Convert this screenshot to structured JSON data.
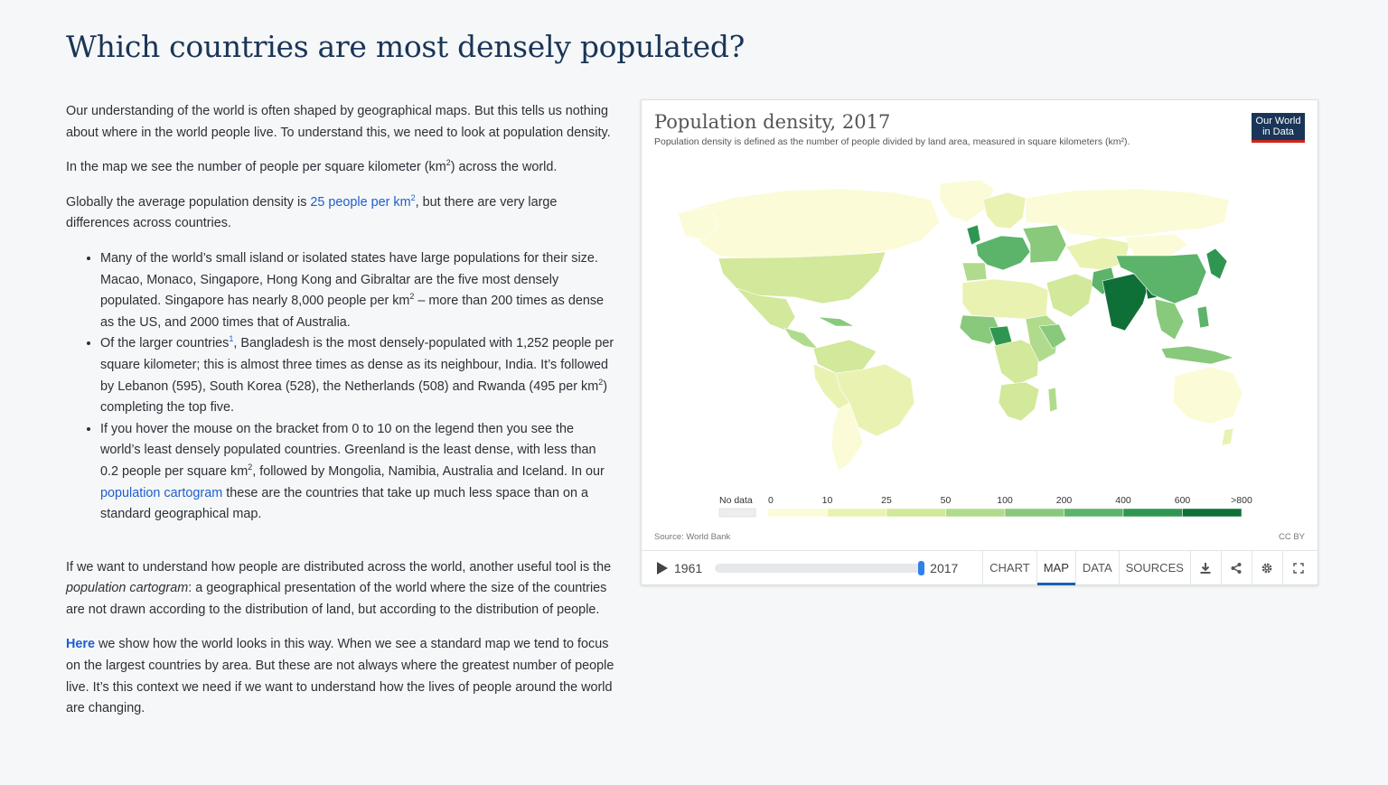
{
  "page": {
    "title": "Which countries are most densely populated?"
  },
  "article": {
    "p1": "Our understanding of the world is often shaped by geographical maps. But this tells us nothing about where in the world people live. To understand this, we need to look at population density.",
    "p2_pre": "In the map we see the number of people per square kilometer (km",
    "p2_sup": "2",
    "p2_post": ") across the world.",
    "p3_pre": "Globally the average population density is ",
    "p3_link": "25 people per km",
    "p3_link_sup": "2",
    "p3_post": ", but there are very large differences across countries.",
    "bullet1_pre": "Many of the world’s small island or isolated states have large populations for their size. Macao, Monaco, Singapore, Hong Kong and Gibraltar are the five most densely populated. Singapore has nearly 8,000 people per km",
    "bullet1_sup": "2",
    "bullet1_post": " – more than 200 times as dense as the US, and 2000 times that of Australia.",
    "bullet2_pre": "Of the larger countries",
    "bullet2_sup": "1",
    "bullet2_mid": ", Bangladesh is the most densely-populated with 1,252 people per square kilometer; this is almost three times as dense as its neighbour, India. It’s followed by Lebanon (595), South Korea (528), the Netherlands (508) and Rwanda (495 per km",
    "bullet2_sup2": "2",
    "bullet2_post": ") completing the top five.",
    "bullet3_pre": "If you hover the mouse on the bracket from 0 to 10 on the legend then you see the world’s least densely populated countries. Greenland is the least dense, with less than 0.2 people per square km",
    "bullet3_sup": "2",
    "bullet3_mid": ", followed by Mongolia, Namibia, Australia and Iceland. In our ",
    "bullet3_link": "population cartogram",
    "bullet3_post": " these are the countries that take up much less space than on a standard geographical map.",
    "p4_pre": "If we want to understand how people are distributed across the world, another useful tool is the ",
    "p4_em": "population cartogram",
    "p4_post": ": a geographical presentation of the world where the size of the countries are not drawn according to the distribution of land, but according to the distribution of people.",
    "p5_link": "Here",
    "p5_post": " we show how the world looks in this way. When we see a standard map we tend to focus on the largest countries by area. But these are not always where the greatest number of people live. It’s this context we need if we want to understand how the lives of people around the world are changing."
  },
  "grapher": {
    "title": "Population density, 2017",
    "subtitle": "Population density is defined as the number of people divided by land area, measured in square kilometers (km²).",
    "logo_line1": "Our World",
    "logo_line2": "in Data",
    "source": "Source: World Bank",
    "license": "CC BY",
    "legend": {
      "no_data_label": "No data",
      "no_data_color": "#eeeeee",
      "ticks": [
        "0",
        "10",
        "25",
        "50",
        "100",
        "200",
        "400",
        "600",
        ">800"
      ],
      "colors": [
        "#fbfbd8",
        "#eaf2b2",
        "#d2e89a",
        "#b1db8c",
        "#88c97b",
        "#5cb36a",
        "#2f9651",
        "#0f7037"
      ]
    },
    "timeline": {
      "start_year": "1961",
      "end_year": "2017",
      "progress": 1.0
    },
    "tabs": [
      "CHART",
      "MAP",
      "DATA",
      "SOURCES"
    ],
    "active_tab": "MAP",
    "icons": [
      "download-icon",
      "share-icon",
      "settings-icon",
      "fullscreen-icon"
    ]
  }
}
